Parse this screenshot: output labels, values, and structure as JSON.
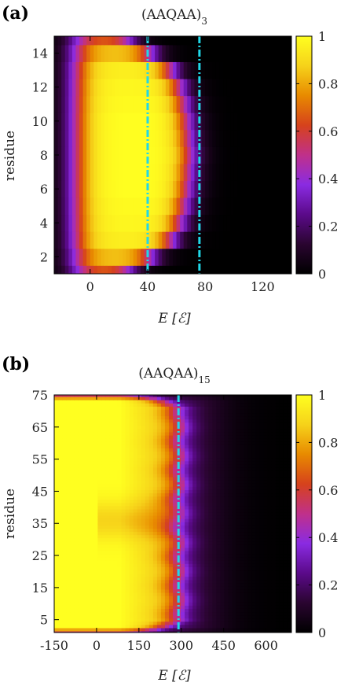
{
  "colors": {
    "palette": [
      "#000000",
      "#2a0530",
      "#5b0a8a",
      "#8a2be2",
      "#c0308a",
      "#d6421c",
      "#e88a00",
      "#f6d21a",
      "#ffff20"
    ],
    "marker_line": "#20d8e8",
    "frame": "#000000"
  },
  "chart_data": [
    {
      "panel": "(a)",
      "type": "heatmap",
      "title": "(AAQAA)",
      "title_sub": "3",
      "xlabel": "E [ℰ]",
      "ylabel": "residue",
      "xlim": [
        -25,
        140
      ],
      "ylim": [
        1,
        15
      ],
      "x_ticks": [
        0,
        40,
        80,
        120
      ],
      "y_ticks": [
        2,
        4,
        6,
        8,
        10,
        12,
        14
      ],
      "colorbar": {
        "range": [
          0,
          1
        ],
        "ticks": [
          0,
          0.2,
          0.4,
          0.6,
          0.8,
          1
        ],
        "tick_labels": [
          "0",
          "0.2",
          "0.4",
          "0.6",
          "0.8",
          "1"
        ]
      },
      "residues": [
        1,
        2,
        3,
        4,
        5,
        6,
        7,
        8,
        9,
        10,
        11,
        12,
        13,
        14,
        15
      ],
      "transition_energy": [
        28,
        42,
        56,
        62,
        65,
        67,
        68,
        69,
        68,
        67,
        65,
        62,
        56,
        42,
        28
      ],
      "plateau_value": [
        0.7,
        0.86,
        0.96,
        0.98,
        0.99,
        1.0,
        1.0,
        1.0,
        1.0,
        1.0,
        0.99,
        0.98,
        0.96,
        0.86,
        0.7
      ],
      "transition_width": 12,
      "vlines": [
        40,
        76
      ]
    },
    {
      "panel": "(b)",
      "type": "heatmap",
      "title": "(AAQAA)",
      "title_sub": "15",
      "xlabel": "E [ℰ]",
      "ylabel": "residue",
      "xlim": [
        -150,
        690
      ],
      "ylim": [
        1,
        75
      ],
      "x_ticks": [
        -150,
        0,
        150,
        300,
        450,
        600
      ],
      "y_ticks": [
        5,
        15,
        25,
        35,
        45,
        55,
        65,
        75
      ],
      "colorbar": {
        "range": [
          0,
          1
        ],
        "ticks": [
          0,
          0.2,
          0.4,
          0.6,
          0.8,
          1
        ],
        "tick_labels": [
          "0",
          "0.2",
          "0.4",
          "0.6",
          "0.8",
          "1"
        ]
      },
      "residues_count": 75,
      "transition_energy_center": 285,
      "transition_width": 70,
      "vlines": [
        290
      ]
    }
  ]
}
